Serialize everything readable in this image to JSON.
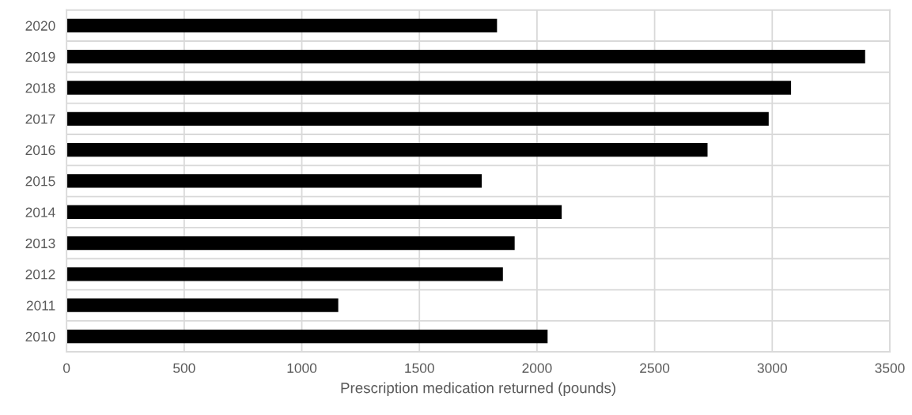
{
  "chart_data": {
    "type": "bar",
    "orientation": "horizontal",
    "categories": [
      "2020",
      "2019",
      "2018",
      "2017",
      "2016",
      "2015",
      "2014",
      "2013",
      "2012",
      "2011",
      "2010"
    ],
    "values": [
      1830,
      3395,
      3080,
      2985,
      2725,
      1765,
      2105,
      1905,
      1855,
      1155,
      2045
    ],
    "color": "#000000",
    "xlabel": "Prescription medication returned (pounds)",
    "xlim": [
      0,
      3500
    ],
    "xticks": [
      0,
      500,
      1000,
      1500,
      2000,
      2500,
      3000,
      3500
    ],
    "grid": true
  }
}
